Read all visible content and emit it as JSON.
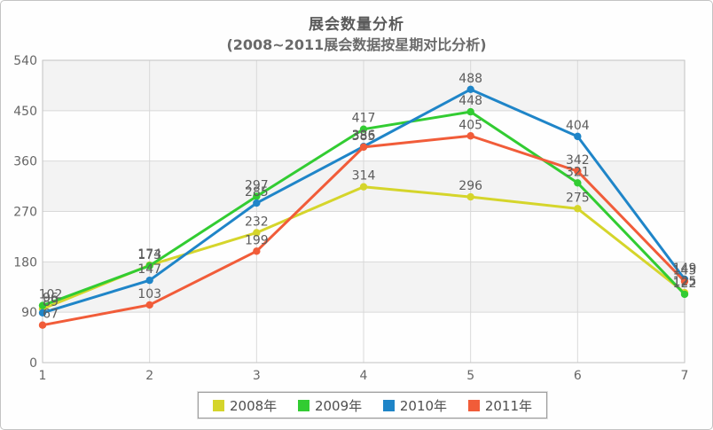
{
  "window": {
    "background": "#fefefe",
    "border_color": "#c3c3c3"
  },
  "chart_data": {
    "type": "line",
    "title": "展会数量分析",
    "subtitle": "(2008~2011展会数据按星期对比分析)",
    "categories": [
      "1",
      "2",
      "3",
      "4",
      "5",
      "6",
      "7"
    ],
    "series": [
      {
        "name": "2008年",
        "color": "#d5d52b",
        "values": [
          96,
          174,
          232,
          314,
          296,
          275,
          125
        ]
      },
      {
        "name": "2009年",
        "color": "#32cc32",
        "values": [
          102,
          173,
          297,
          417,
          448,
          321,
          122
        ]
      },
      {
        "name": "2010年",
        "color": "#1f85c8",
        "values": [
          89,
          147,
          285,
          386,
          488,
          404,
          149
        ]
      },
      {
        "name": "2011年",
        "color": "#f15c39",
        "values": [
          67,
          103,
          199,
          385,
          405,
          342,
          145
        ]
      }
    ],
    "ylim": [
      0,
      540
    ],
    "yticks": [
      540,
      450,
      360,
      270,
      180,
      90,
      0
    ],
    "grid": true,
    "legend_position": "bottom",
    "band_colors": [
      "#f3f3f3",
      "#fefefe"
    ],
    "grid_color": "#d9d9d9",
    "axis_color": "#c2c2c2",
    "tick_label_color": "#666666",
    "value_label_color": "#5c5c5c"
  }
}
